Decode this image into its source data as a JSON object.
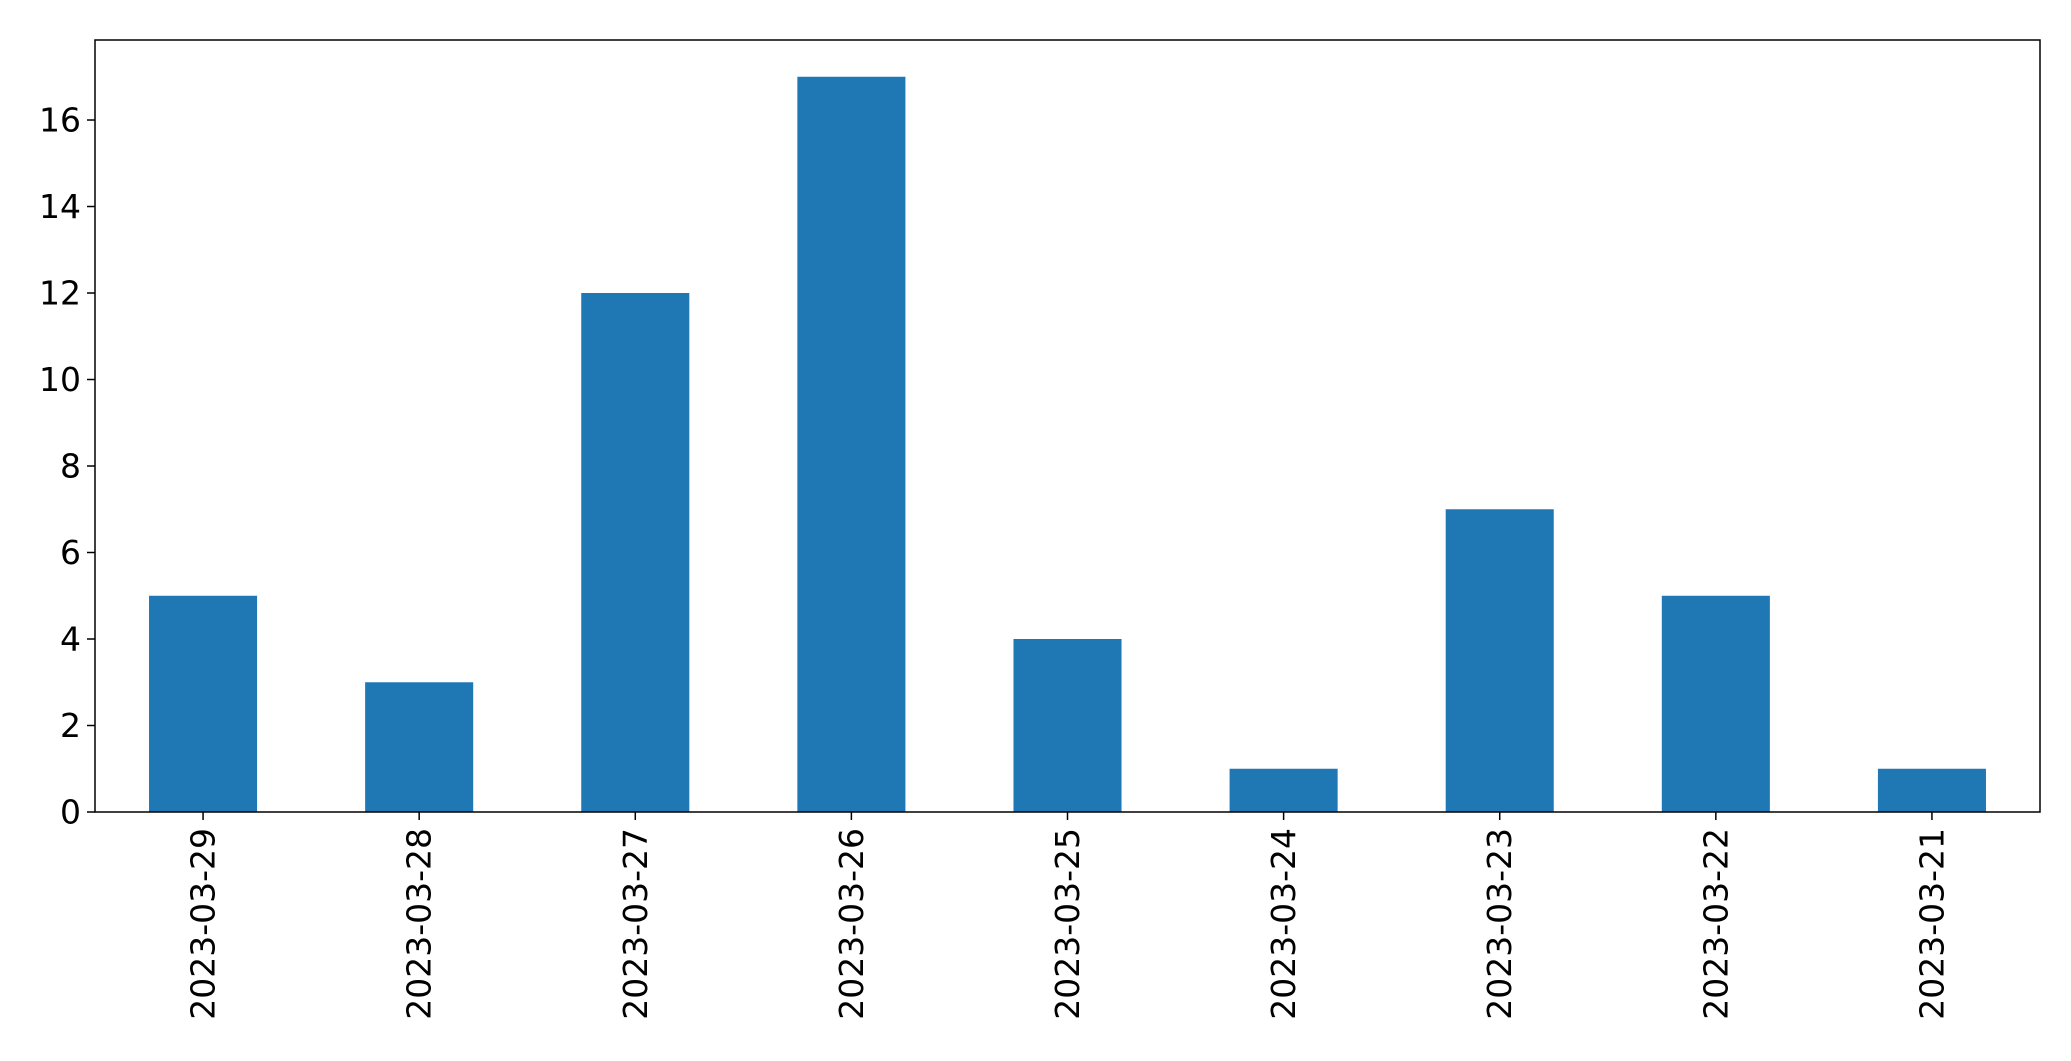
{
  "chart_data": {
    "type": "bar",
    "title": "",
    "xlabel": "",
    "ylabel": "",
    "categories": [
      "2023-03-29",
      "2023-03-28",
      "2023-03-27",
      "2023-03-26",
      "2023-03-25",
      "2023-03-24",
      "2023-03-23",
      "2023-03-22",
      "2023-03-21"
    ],
    "values": [
      5,
      3,
      12,
      17,
      4,
      1,
      7,
      5,
      1
    ],
    "ylim": [
      0,
      17.85
    ],
    "yticks": [
      0,
      2,
      4,
      6,
      8,
      10,
      12,
      14,
      16
    ],
    "bar_color": "#1f77b4",
    "grid": false,
    "legend": "none"
  }
}
